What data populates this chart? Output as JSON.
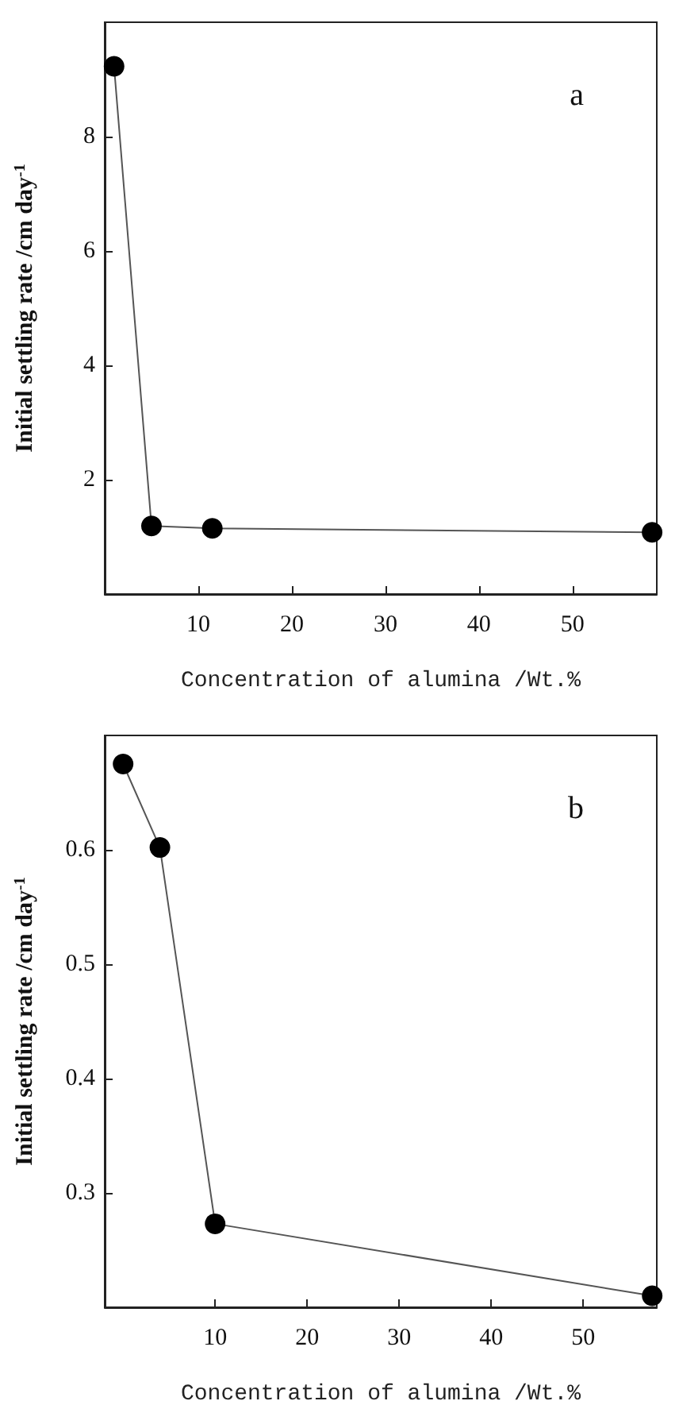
{
  "chart_data": [
    {
      "type": "line",
      "xlabel": "Concentration of alumina /Wt.%",
      "ylabel": "Initial settling rate /cm day$^{-1}$",
      "annotations": [
        "a"
      ],
      "x": [
        1,
        5,
        11.5,
        58.5
      ],
      "series": [
        {
          "color": "#000000",
          "values": [
            9.23,
            1.19,
            1.15,
            1.08
          ]
        }
      ],
      "xlim": [
        0,
        59
      ],
      "xticks": [
        10,
        20,
        30,
        40,
        50
      ],
      "ylim": [
        0,
        10
      ],
      "yticks": [
        2,
        4,
        6,
        8
      ],
      "grid": false,
      "marker": "circle",
      "line_style": "solid"
    },
    {
      "type": "line",
      "xlabel": "Concentration of alumina /Wt.%",
      "ylabel": "Initial settling rate /cm day$^{-1}$",
      "annotations": [
        "b"
      ],
      "x": [
        0,
        4,
        10,
        57.5
      ],
      "series": [
        {
          "color": "#000000",
          "values": [
            0.675,
            0.602,
            0.273,
            0.21
          ]
        }
      ],
      "xlim": [
        -2,
        58
      ],
      "xticks": [
        10,
        20,
        30,
        40,
        50
      ],
      "ylim": [
        0.2,
        0.7
      ],
      "yticks": [
        0.3,
        0.4,
        0.5,
        0.6
      ],
      "grid": false,
      "marker": "circle",
      "line_style": "solid"
    }
  ]
}
